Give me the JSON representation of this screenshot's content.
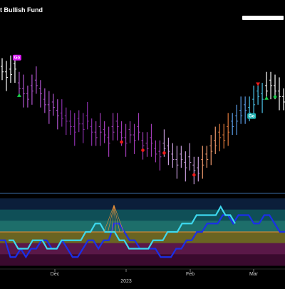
{
  "chart_data": [
    {
      "type": "ohlc",
      "title": "t Bullish Fund",
      "xlabel": "",
      "ylabel": "",
      "signals": [
        {
          "label": "Go",
          "color": "#d71cf0"
        },
        {
          "label": "Go",
          "color": "#1fb5b5"
        }
      ],
      "marker_colors": {
        "up": "#19d04a",
        "down": "#ee1a1a",
        "dot_red": "#ee1a1a",
        "dot_green": "#19d04a"
      },
      "bar_colors": [
        "#ffffff",
        "#d0b8e6",
        "#b054cf",
        "#8a2faa",
        "#a13cb7",
        "#c49ad8",
        "#f09a6d",
        "#e07a3c",
        "#5b9ce6",
        "#4cc3ea",
        "#ffffff"
      ],
      "price_series": [
        62,
        60,
        61,
        63,
        56,
        54,
        52,
        55,
        57,
        54,
        50,
        48,
        49,
        46,
        45,
        44,
        42,
        40,
        43,
        41,
        44,
        40,
        38,
        40,
        39,
        36,
        40,
        42,
        38,
        36,
        39,
        37,
        40,
        35,
        34,
        36,
        32,
        31,
        34,
        33,
        30,
        28,
        30,
        27,
        29,
        26,
        25,
        28,
        30,
        33,
        35,
        38,
        37,
        40,
        42,
        44,
        46,
        48,
        47,
        50,
        53,
        52,
        55,
        57,
        55,
        53,
        51
      ]
    },
    {
      "type": "line",
      "ylabel": "",
      "band_colors": [
        "#0b1e3a",
        "#0f4f57",
        "#1d6e6a",
        "#6a6422",
        "#5a1848",
        "#3a0a2e"
      ],
      "reference_line_color": "#e8913a",
      "series": [
        {
          "color": "#1a2fe8",
          "values": [
            3,
            3,
            1,
            1,
            2,
            1,
            2,
            2,
            3,
            3,
            2,
            2,
            3,
            2,
            1,
            1,
            2,
            3,
            3,
            2,
            3,
            3,
            5,
            5,
            4,
            3,
            3,
            2,
            2,
            2,
            2,
            1,
            1,
            1,
            2,
            2,
            3,
            3,
            4,
            4,
            5,
            5,
            5,
            6,
            6,
            5,
            6,
            6,
            6,
            5,
            5,
            6,
            6,
            5,
            4,
            4
          ]
        },
        {
          "color": "#3dd8ee",
          "values": [
            3,
            3,
            2,
            2,
            2,
            3,
            3,
            3,
            2,
            2,
            2,
            3,
            3,
            3,
            3,
            3,
            4,
            4,
            5,
            5,
            4,
            4,
            4,
            3,
            3,
            2,
            2,
            2,
            2,
            2,
            3,
            3,
            3,
            4,
            4,
            4,
            5,
            5,
            5,
            6,
            6,
            6,
            6,
            6,
            7,
            6,
            6,
            5
          ]
        }
      ],
      "ylim": [
        0,
        8
      ]
    }
  ],
  "x_axis": {
    "ticks": [
      "Dec",
      "2023",
      "Feb",
      "Mar"
    ]
  }
}
